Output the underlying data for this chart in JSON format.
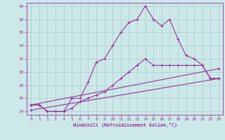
{
  "xlabel": "Windchill (Refroidissement éolien,°C)",
  "background_color": "#cce8e8",
  "grid_color": "#aacccc",
  "line_color": "#993399",
  "line1_x": [
    0,
    1,
    2,
    3,
    4,
    5,
    6,
    7,
    8,
    9,
    10,
    11,
    12,
    13,
    14,
    15,
    16,
    17,
    18,
    19,
    20,
    21,
    22,
    23
  ],
  "line1_y": [
    25,
    25,
    24,
    24,
    24,
    26,
    26,
    28.5,
    31.5,
    32,
    34,
    36,
    37.5,
    38,
    40,
    38,
    37,
    38,
    35,
    32.5,
    32,
    31,
    29,
    29
  ],
  "line2_x": [
    0,
    1,
    2,
    3,
    4,
    5,
    6,
    7,
    8,
    9,
    10,
    11,
    12,
    13,
    14,
    15,
    16,
    17,
    18,
    19,
    20,
    21,
    22,
    23
  ],
  "line2_y": [
    25,
    25,
    24,
    24,
    24,
    24.5,
    25.5,
    26,
    26.5,
    27,
    28,
    29,
    30,
    31,
    32,
    31,
    31,
    31,
    31,
    31,
    31,
    31,
    29,
    29
  ],
  "line3_x": [
    0,
    23
  ],
  "line3_y": [
    25,
    30.5
  ],
  "line4_x": [
    0,
    23
  ],
  "line4_y": [
    24.2,
    29.0
  ],
  "ylim": [
    23.5,
    40.5
  ],
  "xlim": [
    -0.5,
    23.5
  ],
  "yticks": [
    24,
    26,
    28,
    30,
    32,
    34,
    36,
    38,
    40
  ],
  "xticks": [
    0,
    1,
    2,
    3,
    4,
    5,
    6,
    7,
    8,
    9,
    10,
    11,
    12,
    13,
    14,
    15,
    16,
    17,
    18,
    19,
    20,
    21,
    22,
    23
  ]
}
